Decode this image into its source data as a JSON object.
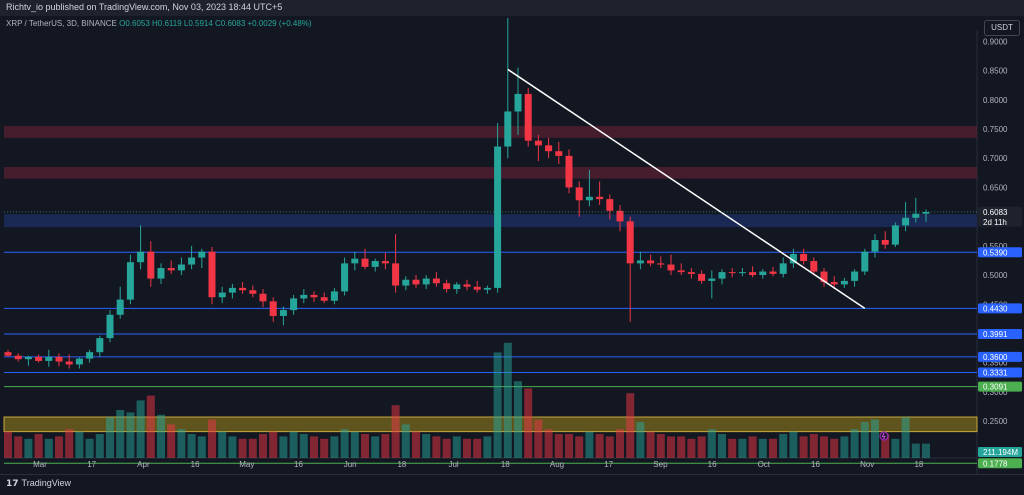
{
  "header": {
    "publisher": "Richtv_io published on TradingView.com, Nov 03, 2023 18:44 UTC+5",
    "symbol": "XRP / TetherUS, 3D, BINANCE",
    "ohlc": "O0.6053 H0.6119 L0.5914 C0.6083 +0.0029 (+0.48%)",
    "currency": "USDT"
  },
  "footer": {
    "logo_text": "TradingView",
    "logo_mark": "17"
  },
  "colors": {
    "bg": "#131722",
    "up": "#26a69a",
    "down": "#f23645",
    "line": "#2962ff",
    "trend": "#ffffff",
    "green_line": "#4caf50"
  },
  "chart_data": {
    "type": "candlestick",
    "instrument": "XRP / TetherUS",
    "timeframe": "3D",
    "ylim": [
      0.18,
      0.94
    ],
    "y_ticks": [
      "0.9000",
      "0.8500",
      "0.8000",
      "0.7500",
      "0.7000",
      "0.6500",
      "0.6000",
      "0.5500",
      "0.5000",
      "0.4500",
      "0.4000",
      "0.3500",
      "0.3000",
      "0.2500",
      "0.2000"
    ],
    "x_ticks": [
      "Mar",
      "17",
      "Apr",
      "16",
      "May",
      "16",
      "Jun",
      "18",
      "Jul",
      "18",
      "Aug",
      "17",
      "Sep",
      "16",
      "Oct",
      "16",
      "Nov",
      "18"
    ],
    "candles": [
      [
        0.368,
        0.372,
        0.36,
        0.362
      ],
      [
        0.362,
        0.366,
        0.352,
        0.356
      ],
      [
        0.356,
        0.362,
        0.345,
        0.36
      ],
      [
        0.36,
        0.364,
        0.35,
        0.353
      ],
      [
        0.353,
        0.372,
        0.343,
        0.36
      ],
      [
        0.36,
        0.366,
        0.344,
        0.352
      ],
      [
        0.352,
        0.364,
        0.34,
        0.347
      ],
      [
        0.347,
        0.359,
        0.34,
        0.357
      ],
      [
        0.357,
        0.372,
        0.35,
        0.368
      ],
      [
        0.368,
        0.396,
        0.36,
        0.392
      ],
      [
        0.392,
        0.44,
        0.385,
        0.432
      ],
      [
        0.432,
        0.48,
        0.425,
        0.458
      ],
      [
        0.458,
        0.535,
        0.45,
        0.522
      ],
      [
        0.522,
        0.585,
        0.51,
        0.54
      ],
      [
        0.54,
        0.558,
        0.48,
        0.494
      ],
      [
        0.494,
        0.52,
        0.485,
        0.512
      ],
      [
        0.512,
        0.525,
        0.502,
        0.508
      ],
      [
        0.508,
        0.53,
        0.5,
        0.518
      ],
      [
        0.518,
        0.55,
        0.51,
        0.53
      ],
      [
        0.53,
        0.545,
        0.512,
        0.54
      ],
      [
        0.54,
        0.548,
        0.45,
        0.462
      ],
      [
        0.462,
        0.48,
        0.452,
        0.47
      ],
      [
        0.47,
        0.485,
        0.46,
        0.478
      ],
      [
        0.478,
        0.488,
        0.468,
        0.474
      ],
      [
        0.474,
        0.482,
        0.462,
        0.468
      ],
      [
        0.468,
        0.476,
        0.445,
        0.455
      ],
      [
        0.455,
        0.462,
        0.42,
        0.43
      ],
      [
        0.43,
        0.446,
        0.414,
        0.44
      ],
      [
        0.44,
        0.466,
        0.432,
        0.46
      ],
      [
        0.46,
        0.476,
        0.452,
        0.466
      ],
      [
        0.466,
        0.472,
        0.454,
        0.462
      ],
      [
        0.462,
        0.47,
        0.452,
        0.456
      ],
      [
        0.456,
        0.478,
        0.45,
        0.472
      ],
      [
        0.472,
        0.53,
        0.465,
        0.52
      ],
      [
        0.52,
        0.54,
        0.508,
        0.528
      ],
      [
        0.528,
        0.545,
        0.51,
        0.514
      ],
      [
        0.514,
        0.528,
        0.506,
        0.524
      ],
      [
        0.524,
        0.538,
        0.51,
        0.52
      ],
      [
        0.52,
        0.57,
        0.47,
        0.482
      ],
      [
        0.482,
        0.498,
        0.474,
        0.492
      ],
      [
        0.492,
        0.5,
        0.478,
        0.484
      ],
      [
        0.484,
        0.5,
        0.476,
        0.494
      ],
      [
        0.494,
        0.505,
        0.48,
        0.486
      ],
      [
        0.486,
        0.492,
        0.47,
        0.476
      ],
      [
        0.476,
        0.488,
        0.468,
        0.484
      ],
      [
        0.484,
        0.492,
        0.474,
        0.48
      ],
      [
        0.48,
        0.49,
        0.47,
        0.475
      ],
      [
        0.475,
        0.482,
        0.468,
        0.478
      ],
      [
        0.478,
        0.76,
        0.47,
        0.72
      ],
      [
        0.72,
        0.94,
        0.7,
        0.78
      ],
      [
        0.78,
        0.855,
        0.74,
        0.81
      ],
      [
        0.81,
        0.82,
        0.72,
        0.73
      ],
      [
        0.73,
        0.74,
        0.695,
        0.722
      ],
      [
        0.722,
        0.735,
        0.7,
        0.712
      ],
      [
        0.712,
        0.728,
        0.69,
        0.704
      ],
      [
        0.704,
        0.715,
        0.64,
        0.65
      ],
      [
        0.65,
        0.66,
        0.6,
        0.628
      ],
      [
        0.628,
        0.68,
        0.618,
        0.634
      ],
      [
        0.634,
        0.66,
        0.62,
        0.63
      ],
      [
        0.63,
        0.638,
        0.595,
        0.61
      ],
      [
        0.61,
        0.62,
        0.575,
        0.592
      ],
      [
        0.592,
        0.6,
        0.42,
        0.52
      ],
      [
        0.52,
        0.54,
        0.51,
        0.525
      ],
      [
        0.525,
        0.535,
        0.515,
        0.52
      ],
      [
        0.52,
        0.532,
        0.512,
        0.518
      ],
      [
        0.518,
        0.535,
        0.5,
        0.508
      ],
      [
        0.508,
        0.52,
        0.5,
        0.505
      ],
      [
        0.505,
        0.512,
        0.494,
        0.502
      ],
      [
        0.502,
        0.508,
        0.485,
        0.49
      ],
      [
        0.49,
        0.508,
        0.46,
        0.494
      ],
      [
        0.494,
        0.51,
        0.484,
        0.505
      ],
      [
        0.505,
        0.512,
        0.496,
        0.504
      ],
      [
        0.504,
        0.512,
        0.498,
        0.505
      ],
      [
        0.505,
        0.515,
        0.496,
        0.5
      ],
      [
        0.5,
        0.51,
        0.494,
        0.506
      ],
      [
        0.506,
        0.514,
        0.498,
        0.502
      ],
      [
        0.502,
        0.53,
        0.496,
        0.52
      ],
      [
        0.52,
        0.545,
        0.512,
        0.536
      ],
      [
        0.536,
        0.545,
        0.518,
        0.524
      ],
      [
        0.524,
        0.53,
        0.5,
        0.506
      ],
      [
        0.506,
        0.512,
        0.48,
        0.488
      ],
      [
        0.488,
        0.498,
        0.476,
        0.484
      ],
      [
        0.484,
        0.495,
        0.478,
        0.49
      ],
      [
        0.49,
        0.51,
        0.48,
        0.506
      ],
      [
        0.506,
        0.545,
        0.5,
        0.54
      ],
      [
        0.54,
        0.57,
        0.53,
        0.56
      ],
      [
        0.56,
        0.575,
        0.545,
        0.552
      ],
      [
        0.552,
        0.59,
        0.548,
        0.585
      ],
      [
        0.585,
        0.625,
        0.575,
        0.598
      ],
      [
        0.598,
        0.632,
        0.59,
        0.605
      ],
      [
        0.605,
        0.612,
        0.591,
        0.608
      ]
    ],
    "volume": [
      0.55,
      0.45,
      0.4,
      0.5,
      0.4,
      0.45,
      0.6,
      0.55,
      0.4,
      0.5,
      0.85,
      1.0,
      0.95,
      1.2,
      1.3,
      0.9,
      0.7,
      0.6,
      0.5,
      0.45,
      0.8,
      0.55,
      0.45,
      0.4,
      0.4,
      0.5,
      0.55,
      0.45,
      0.55,
      0.5,
      0.45,
      0.4,
      0.45,
      0.6,
      0.55,
      0.5,
      0.45,
      0.5,
      1.1,
      0.7,
      0.55,
      0.5,
      0.45,
      0.4,
      0.45,
      0.4,
      0.4,
      0.45,
      2.2,
      2.4,
      1.6,
      1.45,
      0.8,
      0.6,
      0.5,
      0.5,
      0.45,
      0.55,
      0.5,
      0.45,
      0.6,
      1.35,
      0.75,
      0.55,
      0.5,
      0.45,
      0.45,
      0.4,
      0.45,
      0.6,
      0.5,
      0.4,
      0.4,
      0.45,
      0.4,
      0.4,
      0.5,
      0.55,
      0.45,
      0.5,
      0.45,
      0.4,
      0.45,
      0.6,
      0.75,
      0.8,
      0.5,
      0.4,
      0.85,
      0.3,
      0.3
    ],
    "horizontal_levels": [
      "0.5390",
      "0.4430",
      "0.3991",
      "0.3600",
      "0.3331"
    ],
    "green_levels": [
      "0.3091",
      "0.1778"
    ],
    "resistance_zones": [
      [
        0.735,
        0.755
      ],
      [
        0.665,
        0.685
      ]
    ],
    "support_zone": [
      0.582,
      0.604
    ],
    "volume_zone": [
      0.232,
      0.257
    ],
    "trendline": [
      [
        49,
        0.852
      ],
      [
        84,
        0.443
      ]
    ],
    "price_tags": [
      {
        "value": "0.6083",
        "sub": "2d 11h",
        "color": "#1e222d"
      },
      {
        "value": "0.5390",
        "color": "#2962ff"
      },
      {
        "value": "0.4430",
        "color": "#2962ff"
      },
      {
        "value": "0.3991",
        "color": "#2962ff"
      },
      {
        "value": "0.3600",
        "color": "#2962ff"
      },
      {
        "value": "0.3331",
        "color": "#2962ff"
      },
      {
        "value": "0.3091",
        "color": "#4caf50"
      },
      {
        "value": "0.1778",
        "color": "#4caf50"
      },
      {
        "value": "211.194M",
        "color": "#26a69a"
      }
    ]
  }
}
